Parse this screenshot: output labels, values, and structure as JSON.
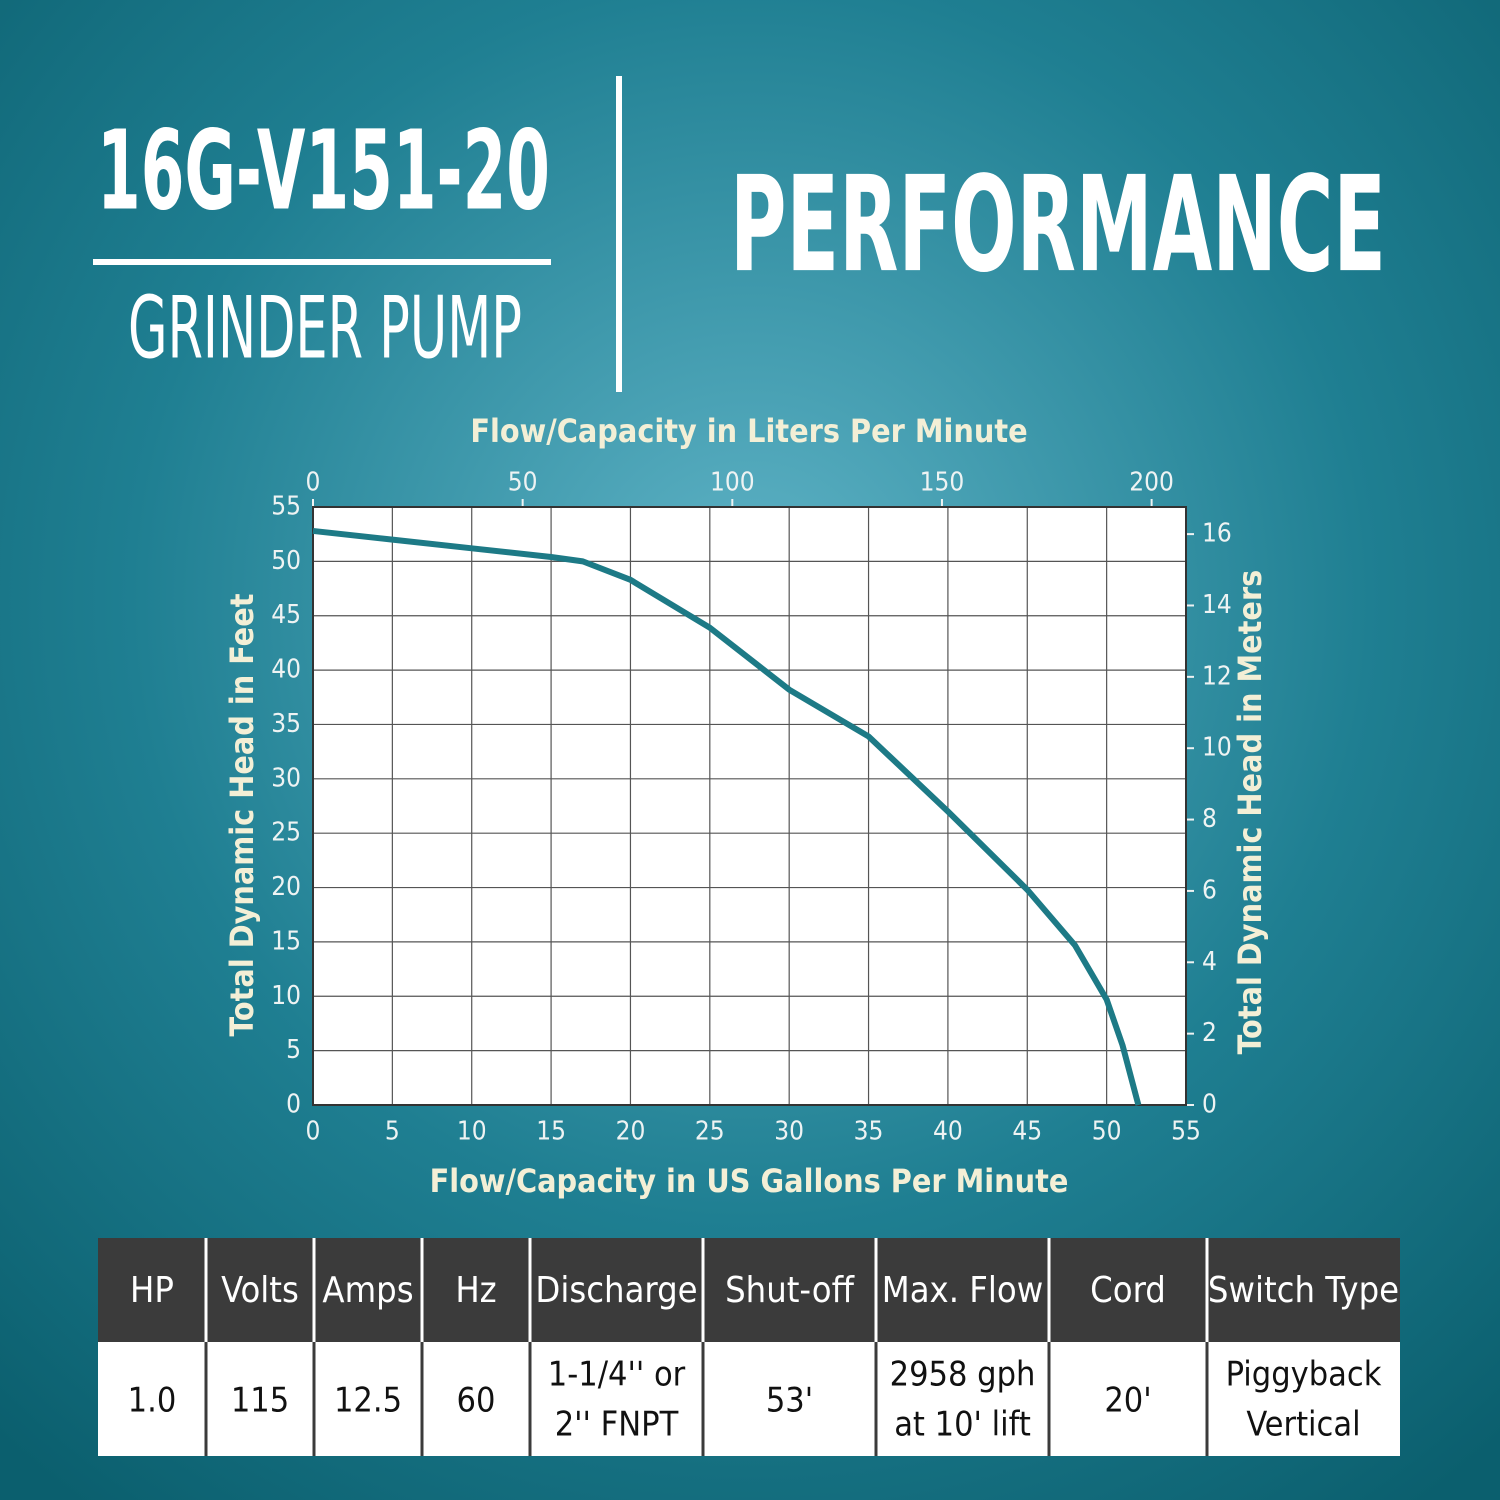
{
  "header": {
    "model": "16G-V151-20",
    "subtitle": "GRINDER PUMP",
    "heading": "PERFORMANCE"
  },
  "chart_data": {
    "type": "line",
    "xlabel": "Flow/Capacity in US Gallons Per Minute",
    "x2label": "Flow/Capacity in Liters Per Minute",
    "ylabel": "Total Dynamic Head in Feet",
    "y2label": "Total Dynamic Head in Meters",
    "xlim": [
      0,
      55
    ],
    "xticks": [
      0,
      5,
      10,
      15,
      20,
      25,
      30,
      35,
      40,
      45,
      50,
      55
    ],
    "x2lim": [
      0,
      208.2
    ],
    "x2ticks": [
      0,
      50,
      100,
      150,
      200
    ],
    "ylim": [
      0,
      55
    ],
    "yticks": [
      0,
      5,
      10,
      15,
      20,
      25,
      30,
      35,
      40,
      45,
      50,
      55
    ],
    "y2lim": [
      0,
      16.76
    ],
    "y2ticks": [
      0,
      2,
      4,
      6,
      8,
      10,
      12,
      14,
      16
    ],
    "grid": true,
    "series": [
      {
        "color": "#1d7a86",
        "x": [
          0,
          5,
          10,
          15,
          17,
          20,
          25,
          30,
          35,
          40,
          45,
          48,
          50,
          51,
          52
        ],
        "values": [
          52.8,
          52.0,
          51.2,
          50.4,
          50.0,
          48.3,
          43.9,
          38.2,
          33.9,
          27.0,
          19.8,
          14.7,
          9.7,
          5.5,
          0
        ]
      }
    ]
  },
  "table": {
    "header": [
      "HP",
      "Volts",
      "Amps",
      "Hz",
      "Discharge",
      "Shut-off",
      "Max. Flow",
      "Cord",
      "Switch Type"
    ],
    "rows": [
      [
        "1.0",
        "115",
        "12.5",
        "60",
        [
          "1-1/4'' or",
          "2'' FNPT"
        ],
        "53'",
        [
          "2958 gph",
          "at 10' lift"
        ],
        "20'",
        [
          "Piggyback",
          "Vertical"
        ]
      ]
    ]
  }
}
